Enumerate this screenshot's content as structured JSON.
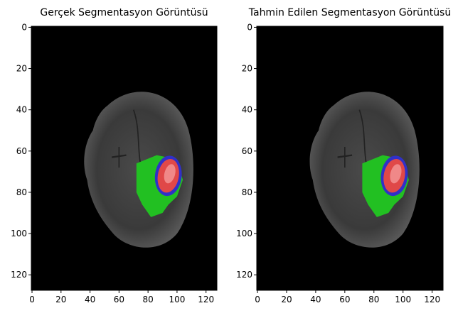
{
  "chart_data": [
    {
      "type": "image",
      "title": "Gerçek Segmentasyon Görüntüsü",
      "xlim": [
        -0.5,
        127.5
      ],
      "ylim": [
        127.5,
        -0.5
      ],
      "xticks": [
        0,
        20,
        40,
        60,
        80,
        100,
        120
      ],
      "yticks": [
        0,
        20,
        40,
        60,
        80,
        100,
        120
      ]
    },
    {
      "type": "image",
      "title": "Tahmin Edilen Segmentasyon Görüntüsü",
      "xlim": [
        -0.5,
        127.5
      ],
      "ylim": [
        127.5,
        -0.5
      ],
      "xticks": [
        0,
        20,
        40,
        60,
        80,
        100,
        120
      ],
      "yticks": [
        0,
        20,
        40,
        60,
        80,
        100,
        120
      ]
    }
  ]
}
